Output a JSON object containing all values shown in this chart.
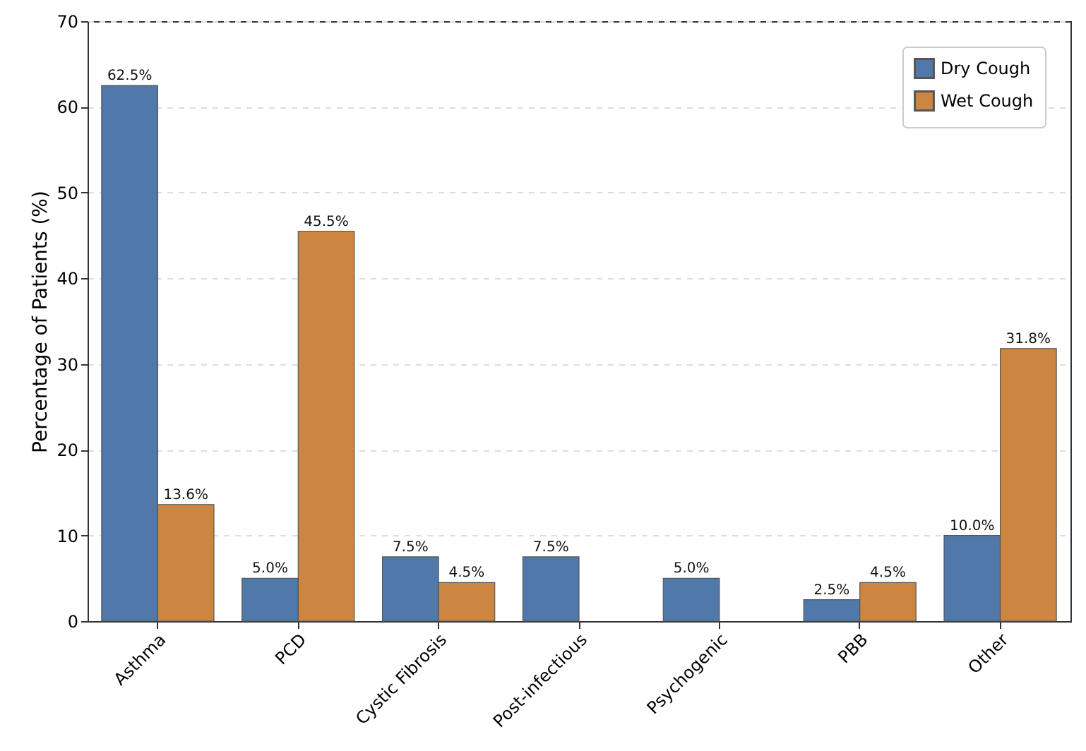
{
  "chart_data": {
    "type": "bar",
    "ylabel": "Percentage of Patients (%)",
    "categories": [
      "Asthma",
      "PCD",
      "Cystic Fibrosis",
      "Post-infectious",
      "Psychogenic",
      "PBB",
      "Other"
    ],
    "series": [
      {
        "name": "Dry Cough",
        "color": "#5079a9",
        "values": [
          62.5,
          5.0,
          7.5,
          7.5,
          5.0,
          2.5,
          10.0
        ],
        "value_labels": [
          "62.5%",
          "5.0%",
          "7.5%",
          "7.5%",
          "5.0%",
          "2.5%",
          "10.0%"
        ]
      },
      {
        "name": "Wet Cough",
        "color": "#cd8641",
        "values": [
          13.6,
          45.5,
          4.5,
          null,
          null,
          4.5,
          31.8
        ],
        "value_labels": [
          "13.6%",
          "45.5%",
          "4.5%",
          null,
          null,
          "4.5%",
          "31.8%"
        ]
      }
    ],
    "ylim": [
      0,
      70
    ],
    "yticks": [
      0,
      10,
      20,
      30,
      40,
      50,
      60,
      70
    ],
    "grid": "y",
    "legend": "top right"
  }
}
